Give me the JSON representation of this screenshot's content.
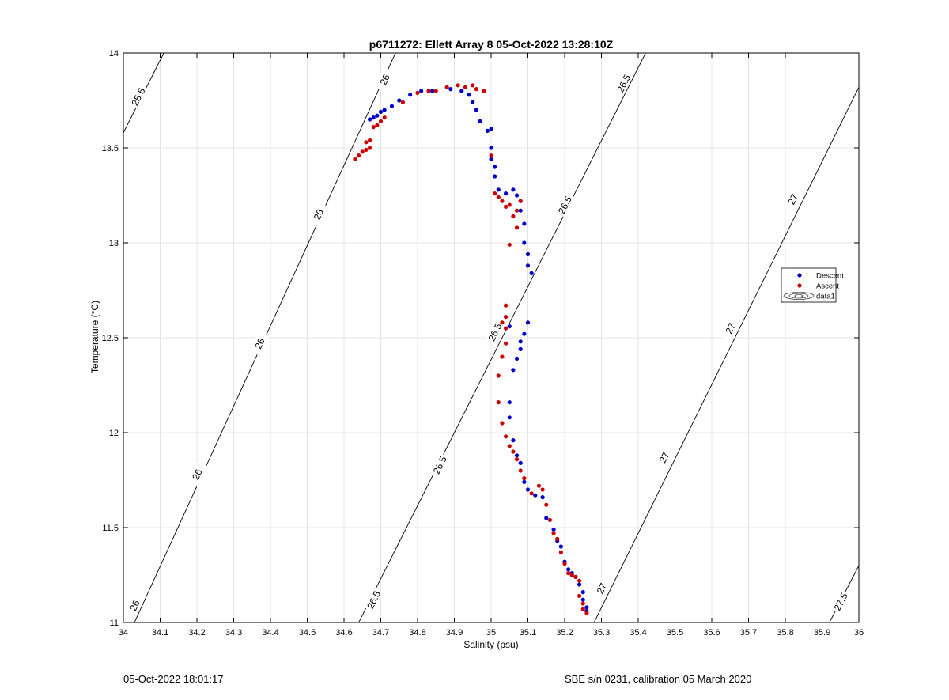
{
  "chart_data": {
    "type": "scatter",
    "title": "p6711272: Ellett Array 8 05-Oct-2022 13:28:10Z",
    "xlabel": "Salinity (psu)",
    "ylabel": "Temperature (°C)",
    "xlim": [
      34,
      36
    ],
    "ylim": [
      11,
      14
    ],
    "xticks": [
      "34",
      "34.1",
      "34.2",
      "34.3",
      "34.4",
      "34.5",
      "34.6",
      "34.7",
      "34.8",
      "34.9",
      "35",
      "35.1",
      "35.2",
      "35.3",
      "35.4",
      "35.5",
      "35.6",
      "35.7",
      "35.8",
      "35.9",
      "36"
    ],
    "yticks": [
      "11",
      "11.5",
      "12",
      "12.5",
      "13",
      "13.5",
      "14"
    ],
    "grid": true,
    "legend_position": "right",
    "legend": [
      "Descent",
      "Ascent",
      "data1"
    ],
    "colors": {
      "descent": "#0000cc",
      "ascent": "#cc0000",
      "contour": "#000000",
      "grid": "#e4e4e4"
    },
    "series": [
      {
        "name": "Descent",
        "points": [
          [
            34.67,
            13.65
          ],
          [
            34.68,
            13.66
          ],
          [
            34.69,
            13.67
          ],
          [
            34.7,
            13.69
          ],
          [
            34.71,
            13.7
          ],
          [
            34.73,
            13.72
          ],
          [
            34.75,
            13.75
          ],
          [
            34.78,
            13.78
          ],
          [
            34.81,
            13.8
          ],
          [
            34.84,
            13.8
          ],
          [
            34.89,
            13.81
          ],
          [
            34.92,
            13.8
          ],
          [
            34.94,
            13.78
          ],
          [
            34.95,
            13.74
          ],
          [
            34.96,
            13.7
          ],
          [
            34.97,
            13.64
          ],
          [
            34.99,
            13.59
          ],
          [
            35.0,
            13.6
          ],
          [
            35.0,
            13.5
          ],
          [
            35.0,
            13.44
          ],
          [
            35.01,
            13.4
          ],
          [
            35.01,
            13.35
          ],
          [
            35.02,
            13.28
          ],
          [
            35.04,
            13.26
          ],
          [
            35.06,
            13.28
          ],
          [
            35.07,
            13.25
          ],
          [
            35.08,
            13.22
          ],
          [
            35.08,
            13.17
          ],
          [
            35.09,
            13.1
          ],
          [
            35.09,
            13.0
          ],
          [
            35.1,
            12.94
          ],
          [
            35.1,
            12.88
          ],
          [
            35.11,
            12.84
          ],
          [
            35.1,
            12.58
          ],
          [
            35.09,
            12.52
          ],
          [
            35.08,
            12.48
          ],
          [
            35.08,
            12.44
          ],
          [
            35.07,
            12.39
          ],
          [
            35.06,
            12.33
          ],
          [
            35.05,
            12.56
          ],
          [
            35.05,
            12.16
          ],
          [
            35.05,
            12.08
          ],
          [
            35.06,
            11.96
          ],
          [
            35.07,
            11.88
          ],
          [
            35.08,
            11.84
          ],
          [
            35.09,
            11.74
          ],
          [
            35.1,
            11.7
          ],
          [
            35.12,
            11.67
          ],
          [
            35.14,
            11.66
          ],
          [
            35.15,
            11.55
          ],
          [
            35.17,
            11.49
          ],
          [
            35.18,
            11.43
          ],
          [
            35.19,
            11.4
          ],
          [
            35.2,
            11.32
          ],
          [
            35.21,
            11.28
          ],
          [
            35.22,
            11.26
          ],
          [
            35.23,
            11.24
          ],
          [
            35.24,
            11.2
          ],
          [
            35.25,
            11.16
          ],
          [
            35.25,
            11.12
          ],
          [
            35.26,
            11.08
          ],
          [
            35.26,
            11.06
          ]
        ]
      },
      {
        "name": "Ascent",
        "points": [
          [
            34.63,
            13.44
          ],
          [
            34.64,
            13.46
          ],
          [
            34.65,
            13.48
          ],
          [
            34.66,
            13.49
          ],
          [
            34.67,
            13.5
          ],
          [
            34.66,
            13.53
          ],
          [
            34.67,
            13.54
          ],
          [
            34.68,
            13.61
          ],
          [
            34.69,
            13.62
          ],
          [
            34.7,
            13.64
          ],
          [
            34.71,
            13.66
          ],
          [
            34.76,
            13.74
          ],
          [
            34.8,
            13.79
          ],
          [
            34.83,
            13.8
          ],
          [
            34.85,
            13.8
          ],
          [
            34.88,
            13.82
          ],
          [
            34.91,
            13.83
          ],
          [
            34.93,
            13.82
          ],
          [
            34.95,
            13.83
          ],
          [
            34.96,
            13.81
          ],
          [
            34.98,
            13.8
          ],
          [
            35.0,
            13.46
          ],
          [
            35.01,
            13.26
          ],
          [
            35.02,
            13.24
          ],
          [
            35.03,
            13.22
          ],
          [
            35.04,
            13.19
          ],
          [
            35.05,
            13.2
          ],
          [
            35.06,
            13.14
          ],
          [
            35.07,
            13.17
          ],
          [
            35.08,
            13.22
          ],
          [
            35.07,
            13.08
          ],
          [
            35.05,
            12.99
          ],
          [
            35.03,
            12.58
          ],
          [
            35.04,
            12.67
          ],
          [
            35.04,
            12.61
          ],
          [
            35.04,
            12.55
          ],
          [
            35.04,
            12.47
          ],
          [
            35.03,
            12.4
          ],
          [
            35.02,
            12.3
          ],
          [
            35.02,
            12.16
          ],
          [
            35.03,
            12.05
          ],
          [
            35.04,
            11.98
          ],
          [
            35.05,
            11.93
          ],
          [
            35.06,
            11.9
          ],
          [
            35.07,
            11.86
          ],
          [
            35.08,
            11.8
          ],
          [
            35.09,
            11.76
          ],
          [
            35.11,
            11.68
          ],
          [
            35.13,
            11.72
          ],
          [
            35.14,
            11.7
          ],
          [
            35.15,
            11.62
          ],
          [
            35.16,
            11.54
          ],
          [
            35.17,
            11.47
          ],
          [
            35.18,
            11.44
          ],
          [
            35.19,
            11.37
          ],
          [
            35.2,
            11.31
          ],
          [
            35.21,
            11.26
          ],
          [
            35.22,
            11.25
          ],
          [
            35.23,
            11.24
          ],
          [
            35.24,
            11.22
          ],
          [
            35.24,
            11.14
          ],
          [
            35.25,
            11.1
          ],
          [
            35.25,
            11.07
          ],
          [
            35.26,
            11.05
          ]
        ]
      }
    ],
    "contours": [
      {
        "level": "25.5",
        "line": [
          [
            34.0,
            13.58
          ],
          [
            34.11,
            14.0
          ]
        ],
        "labels": [
          {
            "text": "25.5",
            "x": 34.04,
            "y": 13.77
          }
        ]
      },
      {
        "level": "26",
        "line": [
          [
            34.03,
            11.0
          ],
          [
            34.74,
            14.0
          ]
        ],
        "labels": [
          {
            "text": "26",
            "x": 34.03,
            "y": 11.09
          },
          {
            "text": "26",
            "x": 34.2,
            "y": 11.78
          },
          {
            "text": "26",
            "x": 34.37,
            "y": 12.47
          },
          {
            "text": "26",
            "x": 34.53,
            "y": 13.15
          },
          {
            "text": "26",
            "x": 34.71,
            "y": 13.86
          }
        ]
      },
      {
        "level": "26.5",
        "line": [
          [
            34.64,
            11.0
          ],
          [
            35.42,
            14.0
          ]
        ],
        "labels": [
          {
            "text": "26.5",
            "x": 34.68,
            "y": 11.12
          },
          {
            "text": "26.5",
            "x": 34.86,
            "y": 11.83
          },
          {
            "text": "26.5",
            "x": 35.01,
            "y": 12.53
          },
          {
            "text": "26.5",
            "x": 35.2,
            "y": 13.2
          },
          {
            "text": "26.5",
            "x": 35.36,
            "y": 13.84
          }
        ]
      },
      {
        "level": "27",
        "line": [
          [
            35.28,
            11.0
          ],
          [
            36.0,
            13.82
          ]
        ],
        "labels": [
          {
            "text": "27",
            "x": 35.3,
            "y": 11.18
          },
          {
            "text": "27",
            "x": 35.47,
            "y": 11.87
          },
          {
            "text": "27",
            "x": 35.65,
            "y": 12.55
          },
          {
            "text": "27",
            "x": 35.82,
            "y": 13.23
          }
        ]
      },
      {
        "level": "27.5",
        "line": [
          [
            35.92,
            11.0
          ],
          [
            36.0,
            11.3
          ]
        ],
        "labels": [
          {
            "text": "27.5",
            "x": 35.95,
            "y": 11.11
          }
        ]
      }
    ]
  },
  "footer": {
    "left": "05-Oct-2022 18:01:17",
    "right": "SBE s/n 0231, calibration 05 March 2020"
  }
}
